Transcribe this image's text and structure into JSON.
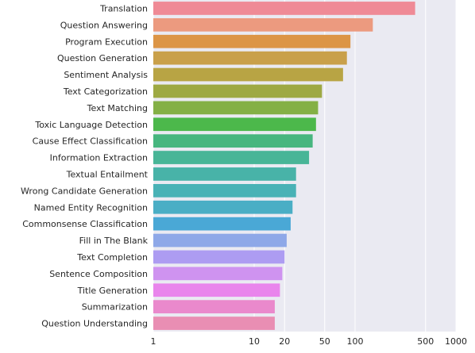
{
  "chart_data": {
    "type": "bar",
    "orientation": "horizontal",
    "xscale": "log",
    "xlim": [
      1,
      1000
    ],
    "xticks": [
      1,
      10,
      20,
      50,
      100,
      500,
      1000
    ],
    "xtick_labels": [
      "1",
      "10",
      "20",
      "50",
      "100",
      "500",
      "1000"
    ],
    "grid": true,
    "title": "",
    "xlabel": "",
    "ylabel": "",
    "categories": [
      "Translation",
      "Question Answering",
      "Program Execution",
      "Question Generation",
      "Sentiment Analysis",
      "Text Categorization",
      "Text Matching",
      "Toxic Language Detection",
      "Cause Effect Classification",
      "Information Extraction",
      "Textual Entailment",
      "Wrong Candidate Generation",
      "Named Entity Recognition",
      "Commonsense Classification",
      "Fill in The Blank",
      "Text Completion",
      "Sentence Composition",
      "Title Generation",
      "Summarization",
      "Question Understanding"
    ],
    "values": [
      394,
      150,
      90,
      83,
      76,
      47,
      43,
      41,
      38,
      35,
      26,
      26,
      24,
      23,
      21,
      20,
      19,
      18,
      16,
      16
    ],
    "colors": [
      "#ef8a96",
      "#ec9a7f",
      "#dc9546",
      "#c9a04a",
      "#b8a444",
      "#9ea943",
      "#84b046",
      "#4cb84b",
      "#47b67f",
      "#48b597",
      "#48b3a8",
      "#49b2b6",
      "#4aaec5",
      "#4aa8d6",
      "#8ea8e8",
      "#ad9cf2",
      "#cf93f0",
      "#e985ec",
      "#ea89cc",
      "#e98eb3"
    ]
  }
}
